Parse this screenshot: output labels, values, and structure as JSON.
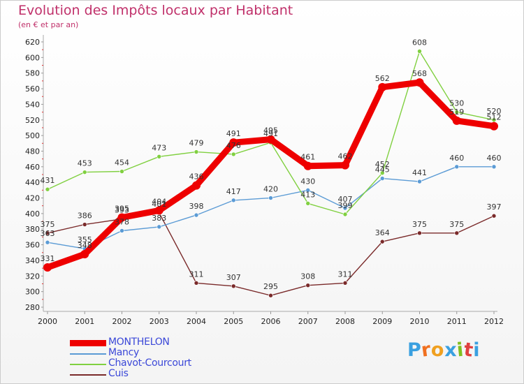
{
  "title": "Evolution des Impôts locaux par Habitant",
  "subtitle": "(en € et par an)",
  "brand": "Proxiti",
  "chart_data": {
    "type": "line",
    "title": "Evolution des Impôts locaux par Habitant",
    "subtitle": "(en € et par an)",
    "xlabel": "",
    "ylabel": "",
    "x": [
      "2000",
      "2001",
      "2002",
      "2003",
      "2004",
      "2005",
      "2006",
      "2007",
      "2008",
      "2009",
      "2010",
      "2011",
      "2012"
    ],
    "ylim": [
      280,
      620
    ],
    "yticks": [
      280,
      300,
      320,
      340,
      360,
      380,
      400,
      420,
      440,
      460,
      480,
      500,
      520,
      540,
      560,
      580,
      600,
      620
    ],
    "grid": false,
    "legend_position": "bottom-left",
    "series": [
      {
        "name": "MONTHELON",
        "color": "#ee0000",
        "values": [
          331,
          348,
          395,
          404,
          436,
          491,
          495,
          461,
          462,
          562,
          568,
          519,
          512
        ]
      },
      {
        "name": "Mancy",
        "color": "#5b9bd5",
        "values": [
          363,
          355,
          378,
          383,
          398,
          417,
          420,
          430,
          407,
          445,
          441,
          460,
          460
        ]
      },
      {
        "name": "Chavot-Courcourt",
        "color": "#80d040",
        "values": [
          431,
          453,
          454,
          473,
          479,
          476,
          491,
          413,
          399,
          452,
          608,
          530,
          520
        ]
      },
      {
        "name": "Cuis",
        "color": "#7a2a2a",
        "values": [
          375,
          386,
          393,
          401,
          311,
          307,
          295,
          308,
          311,
          364,
          375,
          375,
          397
        ]
      }
    ]
  }
}
